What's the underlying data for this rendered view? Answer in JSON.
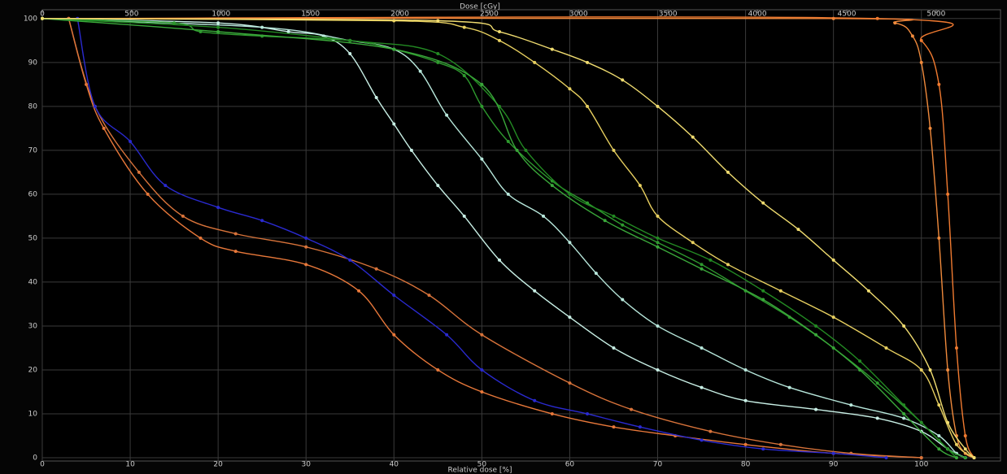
{
  "chart_data": {
    "type": "line",
    "xlabel": "Relative dose [%]",
    "x2label": "Dose [cGy]",
    "xlim": [
      0,
      109
    ],
    "xticks": [
      0,
      10,
      20,
      30,
      40,
      50,
      60,
      70,
      80,
      90,
      100
    ],
    "x2lim": [
      0,
      5360
    ],
    "x2ticks": [
      0,
      500,
      1000,
      1500,
      2000,
      2500,
      3000,
      3500,
      4000,
      4500,
      5000
    ],
    "ylim": [
      0,
      102
    ],
    "yticks": [
      0,
      10,
      20,
      30,
      40,
      50,
      60,
      70,
      80,
      90,
      100
    ],
    "grid": true,
    "series": [
      {
        "color": "#f08a3c",
        "x": [
          0,
          90,
          97,
          99,
          100,
          101,
          102,
          103,
          104,
          105,
          106
        ],
        "values": [
          100,
          100,
          99,
          96,
          90,
          75,
          50,
          20,
          5,
          1,
          0
        ]
      },
      {
        "color": "#f07a30",
        "x": [
          0,
          95,
          100,
          102,
          103,
          104,
          105,
          106
        ],
        "values": [
          100,
          100,
          95,
          85,
          60,
          25,
          5,
          0
        ]
      },
      {
        "color": "#e8783a",
        "x": [
          3,
          5,
          7,
          12,
          18,
          22,
          30,
          36,
          40,
          45,
          50,
          58,
          65,
          72,
          80,
          90,
          100
        ],
        "values": [
          100,
          85,
          75,
          60,
          50,
          47,
          44,
          38,
          28,
          20,
          15,
          10,
          7,
          5,
          3,
          1,
          0
        ]
      },
      {
        "color": "#d8733a",
        "x": [
          3,
          6,
          11,
          16,
          22,
          30,
          38,
          44,
          50,
          60,
          67,
          76,
          84,
          92,
          100
        ],
        "values": [
          100,
          80,
          65,
          55,
          51,
          48,
          43,
          37,
          28,
          17,
          11,
          6,
          3,
          1,
          0
        ]
      },
      {
        "color": "#2a2ad0",
        "x": [
          4,
          6,
          10,
          14,
          20,
          25,
          30,
          35,
          40,
          46,
          50,
          56,
          62,
          68,
          75,
          82,
          90,
          96
        ],
        "values": [
          100,
          80,
          72,
          62,
          57,
          54,
          50,
          45,
          37,
          28,
          20,
          13,
          10,
          7,
          4,
          2,
          1,
          0
        ]
      },
      {
        "color": "#c9f0e6",
        "x": [
          0,
          20,
          28,
          32,
          35,
          38,
          40,
          42,
          45,
          48,
          52,
          56,
          60,
          65,
          70,
          75,
          80,
          88,
          95,
          100,
          103,
          105
        ],
        "values": [
          100,
          99,
          97,
          96,
          92,
          82,
          76,
          70,
          62,
          55,
          45,
          38,
          32,
          25,
          20,
          16,
          13,
          11,
          9,
          6,
          2,
          0
        ]
      },
      {
        "color": "#b8e8dc",
        "x": [
          0,
          25,
          35,
          40,
          43,
          46,
          50,
          53,
          57,
          60,
          63,
          66,
          70,
          75,
          80,
          85,
          92,
          98,
          102,
          104,
          105
        ],
        "values": [
          100,
          98,
          95,
          93,
          88,
          78,
          68,
          60,
          55,
          49,
          42,
          36,
          30,
          25,
          20,
          16,
          12,
          9,
          5,
          1,
          0
        ]
      },
      {
        "color": "#2e9a2e",
        "x": [
          0,
          15,
          18,
          25,
          35,
          40,
          45,
          48,
          50,
          53,
          58,
          62,
          66,
          70,
          75,
          80,
          85,
          90,
          95,
          100,
          103,
          105
        ],
        "values": [
          100,
          99,
          97,
          96,
          95,
          93,
          90,
          87,
          80,
          72,
          63,
          58,
          53,
          49,
          44,
          38,
          32,
          25,
          17,
          8,
          2,
          0
        ]
      },
      {
        "color": "#238a23",
        "x": [
          0,
          20,
          35,
          45,
          52,
          55,
          60,
          65,
          70,
          76,
          82,
          88,
          93,
          98,
          102,
          104
        ],
        "values": [
          100,
          98,
          95,
          92,
          80,
          70,
          60,
          55,
          50,
          45,
          38,
          30,
          22,
          12,
          4,
          0
        ]
      },
      {
        "color": "#3aa83a",
        "x": [
          0,
          20,
          40,
          50,
          54,
          58,
          64,
          70,
          75,
          82,
          88,
          93,
          98,
          102,
          104
        ],
        "values": [
          100,
          97,
          93,
          85,
          70,
          62,
          54,
          48,
          43,
          36,
          28,
          20,
          10,
          2,
          0
        ]
      },
      {
        "color": "#e8d060",
        "x": [
          0,
          40,
          48,
          52,
          56,
          60,
          62,
          65,
          68,
          70,
          74,
          78,
          84,
          90,
          96,
          100,
          102,
          104,
          106
        ],
        "values": [
          100,
          99.5,
          98,
          95,
          90,
          84,
          80,
          70,
          62,
          55,
          49,
          44,
          38,
          32,
          25,
          20,
          12,
          3,
          0
        ]
      },
      {
        "color": "#f0dc70",
        "x": [
          0,
          45,
          52,
          58,
          62,
          66,
          70,
          74,
          78,
          82,
          86,
          90,
          94,
          98,
          101,
          103,
          105,
          106
        ],
        "values": [
          100,
          99.5,
          97,
          93,
          90,
          86,
          80,
          73,
          65,
          58,
          52,
          45,
          38,
          30,
          20,
          8,
          2,
          0
        ]
      }
    ]
  }
}
